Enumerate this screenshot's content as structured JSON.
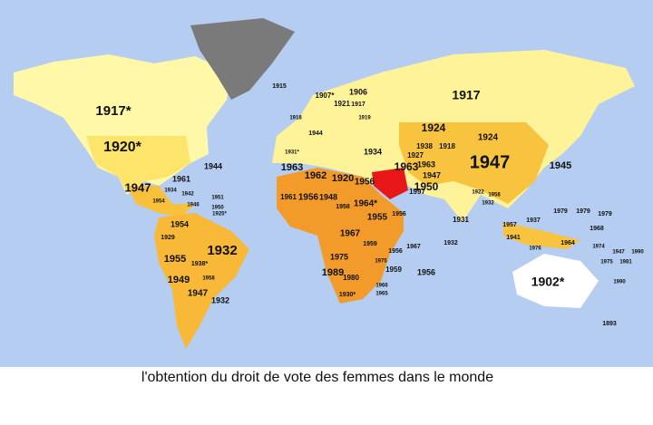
{
  "caption": "l'obtention du droit de vote des femmes dans le monde",
  "labels": [
    "1917*",
    "1920*",
    "1961",
    "1944",
    "1947",
    "1954",
    "1934",
    "1942",
    "1951",
    "1950",
    "1925*",
    "1946",
    "1954",
    "1929",
    "1932",
    "1955",
    "1938*",
    "1949",
    "1958",
    "1947",
    "1932",
    "1915",
    "1907*",
    "1906",
    "1921",
    "1917",
    "1918",
    "1919",
    "1944",
    "1934",
    "1931*",
    "1963",
    "1962",
    "1920",
    "1956",
    "1963",
    "1963",
    "1947",
    "1950",
    "1997",
    "1924",
    "1917",
    "1924",
    "1938",
    "1927",
    "1918",
    "1947",
    "1945",
    "1961",
    "1956",
    "1948",
    "1964*",
    "1955",
    "1956",
    "1958",
    "1931",
    "1922",
    "1958",
    "1932",
    "1957",
    "1941",
    "1937",
    "1967",
    "1959",
    "1956",
    "1967",
    "1932",
    "1975",
    "1975",
    "1989",
    "1980",
    "1959",
    "1956",
    "1966",
    "1965",
    "1930*",
    "1979",
    "1979",
    "1979",
    "1968",
    "1974",
    "1947",
    "1990",
    "1976",
    "1964",
    "1975",
    "1981",
    "1902*",
    "1990",
    "1893"
  ]
}
